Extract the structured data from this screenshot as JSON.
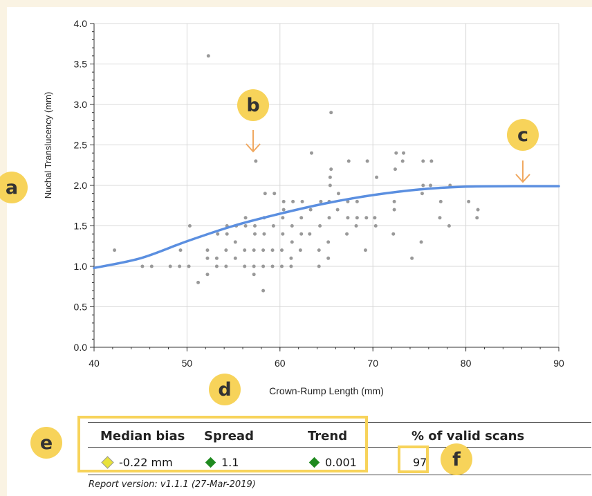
{
  "chart_data": {
    "type": "scatter",
    "xlabel": "Crown-Rump Length (mm)",
    "ylabel": "Nuchal Translucency (mm)",
    "xlim": [
      40,
      90
    ],
    "ylim": [
      0,
      4.0
    ],
    "x_ticks": [
      "40",
      "50",
      "60",
      "70",
      "80",
      "90"
    ],
    "y_ticks": [
      "0.0",
      "0.5",
      "1.0",
      "1.5",
      "2.0",
      "2.5",
      "3.0",
      "3.5",
      "4.0"
    ],
    "grid": true,
    "point_color": "#999999",
    "curve_color": "#5b8fe0",
    "points": [
      [
        42.2,
        1.2
      ],
      [
        45.2,
        1.0
      ],
      [
        46.2,
        1.0
      ],
      [
        48.2,
        1.0
      ],
      [
        49.2,
        1.0
      ],
      [
        49.3,
        1.2
      ],
      [
        50.2,
        1.0
      ],
      [
        50.3,
        1.5
      ],
      [
        51.2,
        0.8
      ],
      [
        52.2,
        0.9
      ],
      [
        52.2,
        1.1
      ],
      [
        52.2,
        1.2
      ],
      [
        52.3,
        3.6
      ],
      [
        53.2,
        1.0
      ],
      [
        53.2,
        1.1
      ],
      [
        53.3,
        1.4
      ],
      [
        54.2,
        1.0
      ],
      [
        54.2,
        1.2
      ],
      [
        54.3,
        1.4
      ],
      [
        54.3,
        1.5
      ],
      [
        55.2,
        1.1
      ],
      [
        55.2,
        1.3
      ],
      [
        55.3,
        1.5
      ],
      [
        56.2,
        1.0
      ],
      [
        56.2,
        1.2
      ],
      [
        56.3,
        1.5
      ],
      [
        56.3,
        1.6
      ],
      [
        57.2,
        0.9
      ],
      [
        57.2,
        1.0
      ],
      [
        57.2,
        1.2
      ],
      [
        57.3,
        1.4
      ],
      [
        57.3,
        1.5
      ],
      [
        57.4,
        2.3
      ],
      [
        58.2,
        0.7
      ],
      [
        58.2,
        1.0
      ],
      [
        58.2,
        1.2
      ],
      [
        58.3,
        1.4
      ],
      [
        58.3,
        1.6
      ],
      [
        58.4,
        1.9
      ],
      [
        59.2,
        1.0
      ],
      [
        59.2,
        1.2
      ],
      [
        59.3,
        1.5
      ],
      [
        59.4,
        1.9
      ],
      [
        60.2,
        1.0
      ],
      [
        60.2,
        1.2
      ],
      [
        60.3,
        1.4
      ],
      [
        60.3,
        1.6
      ],
      [
        60.4,
        1.7
      ],
      [
        60.4,
        1.8
      ],
      [
        61.2,
        1.0
      ],
      [
        61.2,
        1.1
      ],
      [
        61.3,
        1.3
      ],
      [
        61.3,
        1.5
      ],
      [
        61.4,
        1.8
      ],
      [
        62.2,
        1.2
      ],
      [
        62.3,
        1.4
      ],
      [
        62.3,
        1.6
      ],
      [
        62.4,
        1.8
      ],
      [
        63.2,
        1.4
      ],
      [
        63.3,
        1.7
      ],
      [
        63.4,
        2.4
      ],
      [
        64.2,
        1.0
      ],
      [
        64.2,
        1.2
      ],
      [
        64.3,
        1.5
      ],
      [
        64.4,
        1.8
      ],
      [
        65.2,
        1.1
      ],
      [
        65.2,
        1.3
      ],
      [
        65.3,
        1.6
      ],
      [
        65.3,
        1.8
      ],
      [
        65.4,
        2.0
      ],
      [
        65.4,
        2.1
      ],
      [
        65.5,
        2.2
      ],
      [
        65.5,
        2.9
      ],
      [
        66.2,
        1.7
      ],
      [
        66.3,
        1.9
      ],
      [
        67.2,
        1.4
      ],
      [
        67.3,
        1.6
      ],
      [
        67.3,
        1.8
      ],
      [
        67.4,
        2.3
      ],
      [
        68.2,
        1.5
      ],
      [
        68.3,
        1.6
      ],
      [
        68.3,
        1.8
      ],
      [
        69.2,
        1.2
      ],
      [
        69.3,
        1.6
      ],
      [
        69.4,
        2.3
      ],
      [
        70.2,
        1.6
      ],
      [
        70.3,
        1.5
      ],
      [
        70.4,
        2.1
      ],
      [
        72.2,
        1.4
      ],
      [
        72.3,
        1.7
      ],
      [
        72.3,
        1.8
      ],
      [
        72.4,
        2.2
      ],
      [
        72.5,
        2.4
      ],
      [
        73.2,
        2.3
      ],
      [
        73.3,
        2.4
      ],
      [
        74.2,
        1.1
      ],
      [
        75.2,
        1.3
      ],
      [
        75.3,
        1.9
      ],
      [
        75.4,
        2.0
      ],
      [
        75.4,
        2.3
      ],
      [
        76.2,
        2.0
      ],
      [
        76.3,
        2.3
      ],
      [
        77.2,
        1.6
      ],
      [
        77.3,
        1.8
      ],
      [
        78.2,
        1.5
      ],
      [
        78.3,
        2.0
      ],
      [
        80.3,
        1.8
      ],
      [
        81.2,
        1.6
      ],
      [
        81.3,
        1.7
      ]
    ],
    "curve": [
      [
        40,
        0.98
      ],
      [
        45,
        1.1
      ],
      [
        50,
        1.31
      ],
      [
        55,
        1.5
      ],
      [
        60,
        1.65
      ],
      [
        65,
        1.78
      ],
      [
        70,
        1.88
      ],
      [
        75,
        1.95
      ],
      [
        80,
        1.985
      ],
      [
        85,
        1.99
      ],
      [
        90,
        1.99
      ]
    ]
  },
  "callouts": {
    "a": "a",
    "b": "b",
    "c": "c",
    "d": "d",
    "e": "e",
    "f": "f"
  },
  "stats": {
    "median_bias_label": "Median bias",
    "spread_label": "Spread",
    "trend_label": "Trend",
    "valid_label": "% of valid scans",
    "median_bias_value": "-0.22 mm",
    "spread_value": "1.1",
    "trend_value": "0.001",
    "valid_value": "97",
    "median_bias_color": "#e8e23a",
    "spread_color": "#1f8a1f",
    "trend_color": "#1f8a1f"
  },
  "report_version": "Report version: v1.1.1  (27-Mar-2019)",
  "accent_color": "#f7d35a",
  "arrow_color": "#f0a860"
}
